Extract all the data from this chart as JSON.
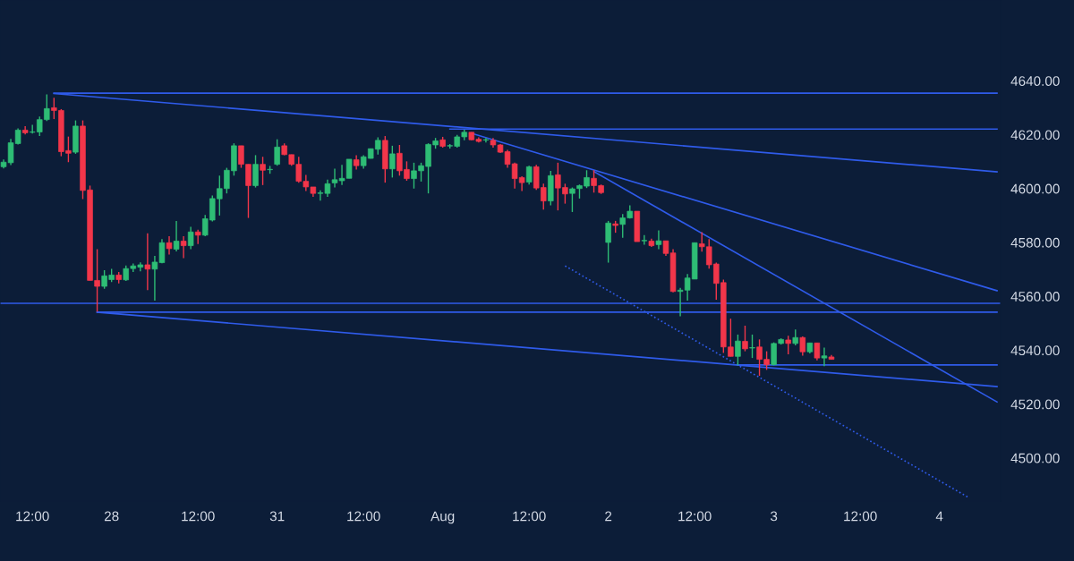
{
  "chart_data": {
    "type": "candlestick",
    "ylim": [
      4484,
      4670
    ],
    "categories": [
      null,
      null,
      null,
      null,
      "12:00",
      null,
      null,
      null,
      null,
      null,
      null,
      null,
      null,
      null,
      null,
      "28",
      null,
      null,
      null,
      null,
      null,
      null,
      null,
      null,
      null,
      null,
      null,
      "12:00",
      null,
      null,
      null,
      null,
      null,
      null,
      null,
      null,
      null,
      null,
      "31",
      null,
      null,
      null,
      null,
      null,
      null,
      null,
      null,
      null,
      null,
      null,
      "12:00",
      null,
      null,
      null,
      null,
      null,
      null,
      null,
      null,
      null,
      null,
      "Aug",
      null,
      null,
      null,
      null,
      null,
      null,
      null,
      null,
      null,
      null,
      null,
      "12:00",
      null,
      null,
      null,
      null,
      null,
      null,
      null,
      null,
      null,
      null,
      "2",
      null,
      null,
      null,
      null,
      null,
      null,
      null,
      null,
      null,
      null,
      null,
      "12:00",
      null,
      null,
      null,
      null,
      null,
      null,
      null,
      null,
      null,
      null,
      "3",
      null,
      null,
      null,
      null,
      null,
      null,
      null,
      null,
      null,
      null,
      null,
      "12:00",
      null,
      null,
      null,
      null,
      null,
      null,
      null,
      null,
      null,
      null,
      "4",
      null,
      null,
      null,
      null,
      null,
      null,
      null,
      null
    ],
    "yticks": [
      {
        "value": 4500,
        "label": "4500.00"
      },
      {
        "value": 4520,
        "label": "4520.00"
      },
      {
        "value": 4540,
        "label": "4540.00"
      },
      {
        "value": 4560,
        "label": "4560.00"
      },
      {
        "value": 4580,
        "label": "4580.00"
      },
      {
        "value": 4600,
        "label": "4600.00"
      },
      {
        "value": 4620,
        "label": "4620.00"
      },
      {
        "value": 4640,
        "label": "4640.00"
      }
    ],
    "grid": false,
    "legend": false,
    "ref_lines": [
      {
        "axis": "y",
        "value": 4557.4,
        "color": "#2f5bea"
      }
    ],
    "series": [
      {
        "ohlc": [
          [
            4608.1,
            4610.8,
            4607.5,
            4609.8
          ],
          [
            4609.6,
            4618.4,
            4608.7,
            4617.0
          ],
          [
            4616.7,
            4622.3,
            4616.4,
            4621.7
          ],
          [
            4621.7,
            4623.2,
            4620.1,
            4620.7
          ],
          [
            4620.9,
            4623.7,
            4620.4,
            4621.0
          ],
          [
            4621.0,
            4626.7,
            4619.5,
            4625.6
          ],
          [
            4625.6,
            4635.0,
            4625.1,
            4629.7
          ],
          [
            4630.0,
            4633.7,
            4625.8,
            4629.0
          ],
          [
            4629.0,
            4629.5,
            4612.0,
            4613.7
          ],
          [
            4614.1,
            4619.3,
            4609.8,
            4613.1
          ],
          [
            4613.5,
            4625.3,
            4612.9,
            4623.2
          ],
          [
            4623.2,
            4625.3,
            4596.1,
            4599.3
          ],
          [
            4599.5,
            4601.1,
            4565.9,
            4565.9
          ],
          [
            4565.9,
            4577.5,
            4554.3,
            4563.7
          ],
          [
            4563.7,
            4569.7,
            4562.8,
            4567.6
          ],
          [
            4566.2,
            4570.2,
            4565.3,
            4567.9
          ],
          [
            4567.9,
            4569.0,
            4564.8,
            4566.2
          ],
          [
            4566.1,
            4571.4,
            4565.7,
            4570.3
          ],
          [
            4570.3,
            4572.2,
            4569.0,
            4571.3
          ],
          [
            4570.8,
            4572.6,
            4569.3,
            4571.7
          ],
          [
            4571.7,
            4583.4,
            4562.3,
            4570.1
          ],
          [
            4570.1,
            4575.0,
            4558.4,
            4572.7
          ],
          [
            4572.5,
            4581.2,
            4572.3,
            4579.9
          ],
          [
            4579.9,
            4582.3,
            4575.5,
            4577.7
          ],
          [
            4577.5,
            4588.0,
            4576.7,
            4580.5
          ],
          [
            4580.5,
            4582.3,
            4574.2,
            4578.8
          ],
          [
            4578.8,
            4585.8,
            4577.5,
            4583.9
          ],
          [
            4583.9,
            4584.7,
            4579.4,
            4582.7
          ],
          [
            4582.7,
            4590.2,
            4582.3,
            4588.8
          ],
          [
            4588.3,
            4597.4,
            4587.8,
            4596.3
          ],
          [
            4596.2,
            4604.8,
            4590.0,
            4600.0
          ],
          [
            4600.0,
            4607.7,
            4598.2,
            4606.8
          ],
          [
            4606.6,
            4616.8,
            4604.8,
            4615.9
          ],
          [
            4615.9,
            4615.9,
            4607.7,
            4609.0
          ],
          [
            4609.0,
            4609.0,
            4589.1,
            4601.1
          ],
          [
            4601.1,
            4612.4,
            4600.4,
            4609.0
          ],
          [
            4609.0,
            4611.8,
            4601.3,
            4606.8
          ],
          [
            4607.0,
            4608.4,
            4605.5,
            4607.1
          ],
          [
            4609.0,
            4618.3,
            4608.5,
            4615.4
          ],
          [
            4615.9,
            4616.8,
            4612.4,
            4612.6
          ],
          [
            4612.6,
            4612.6,
            4608.5,
            4609.0
          ],
          [
            4609.0,
            4611.8,
            4602.2,
            4602.7
          ],
          [
            4602.7,
            4605.1,
            4599.1,
            4600.6
          ],
          [
            4600.6,
            4600.6,
            4596.9,
            4598.2
          ],
          [
            4598.2,
            4599.3,
            4595.5,
            4598.4
          ],
          [
            4598.2,
            4603.3,
            4596.9,
            4601.8
          ],
          [
            4602.1,
            4607.4,
            4600.4,
            4603.3
          ],
          [
            4602.9,
            4608.8,
            4601.3,
            4603.8
          ],
          [
            4603.8,
            4610.9,
            4603.8,
            4610.9
          ],
          [
            4610.7,
            4612.4,
            4607.1,
            4608.5
          ],
          [
            4608.5,
            4612.4,
            4607.4,
            4611.8
          ],
          [
            4611.2,
            4614.8,
            4611.1,
            4614.8
          ],
          [
            4614.6,
            4619.0,
            4612.6,
            4617.9
          ],
          [
            4617.9,
            4619.5,
            4602.2,
            4607.3
          ],
          [
            4607.3,
            4615.9,
            4604.1,
            4612.9
          ],
          [
            4613.1,
            4616.2,
            4604.8,
            4606.6
          ],
          [
            4607.1,
            4610.1,
            4602.9,
            4603.7
          ],
          [
            4603.7,
            4609.6,
            4600.0,
            4606.6
          ],
          [
            4606.6,
            4609.6,
            4602.6,
            4608.5
          ],
          [
            4608.2,
            4616.8,
            4598.2,
            4616.4
          ],
          [
            4616.2,
            4618.8,
            4614.8,
            4617.7
          ],
          [
            4618.1,
            4619.2,
            4615.2,
            4615.7
          ],
          [
            4615.8,
            4616.5,
            4614.9,
            4615.9
          ],
          [
            4615.7,
            4619.9,
            4615.2,
            4619.2
          ],
          [
            4619.2,
            4621.8,
            4617.9,
            4620.9
          ],
          [
            4620.9,
            4620.9,
            4617.9,
            4618.1
          ],
          [
            4618.3,
            4619.0,
            4617.1,
            4617.5
          ],
          [
            4618.0,
            4618.8,
            4617.1,
            4618.1
          ],
          [
            4617.9,
            4618.8,
            4615.2,
            4616.2
          ],
          [
            4616.2,
            4616.5,
            4613.2,
            4613.5
          ],
          [
            4613.7,
            4614.4,
            4607.7,
            4609.0
          ],
          [
            4609.2,
            4609.6,
            4600.0,
            4603.7
          ],
          [
            4604.1,
            4604.6,
            4599.1,
            4602.2
          ],
          [
            4602.4,
            4608.5,
            4601.5,
            4608.1
          ],
          [
            4608.1,
            4608.8,
            4599.5,
            4600.2
          ],
          [
            4600.4,
            4601.8,
            4592.2,
            4595.4
          ],
          [
            4595.4,
            4606.6,
            4593.8,
            4604.8
          ],
          [
            4605.1,
            4609.6,
            4591.9,
            4600.2
          ],
          [
            4600.4,
            4601.8,
            4594.4,
            4598.0
          ],
          [
            4598.2,
            4600.4,
            4591.3,
            4599.9
          ],
          [
            4600.0,
            4601.5,
            4596.3,
            4601.1
          ],
          [
            4600.9,
            4606.8,
            4600.2,
            4604.1
          ],
          [
            4603.8,
            4606.8,
            4598.5,
            4601.1
          ],
          [
            4601.1,
            4601.5,
            4598.0,
            4598.5
          ],
          [
            4580.0,
            4588.0,
            4572.5,
            4587.2
          ],
          [
            4586.9,
            4588.0,
            4583.6,
            4586.3
          ],
          [
            4586.7,
            4590.5,
            4581.7,
            4589.1
          ],
          [
            4589.1,
            4593.8,
            4588.9,
            4591.6
          ],
          [
            4591.6,
            4591.6,
            4580.3,
            4580.3
          ],
          [
            4580.6,
            4582.7,
            4579.2,
            4580.7
          ],
          [
            4580.5,
            4581.4,
            4578.3,
            4578.8
          ],
          [
            4579.2,
            4584.5,
            4577.5,
            4580.6
          ],
          [
            4580.6,
            4580.6,
            4575.0,
            4575.9
          ],
          [
            4576.1,
            4577.5,
            4561.5,
            4561.8
          ],
          [
            4561.8,
            4563.1,
            4552.6,
            4562.3
          ],
          [
            4562.3,
            4568.3,
            4558.4,
            4566.8
          ],
          [
            4566.4,
            4579.9,
            4566.4,
            4579.9
          ],
          [
            4579.5,
            4583.8,
            4576.6,
            4578.4
          ],
          [
            4578.4,
            4581.2,
            4570.3,
            4571.7
          ],
          [
            4572.0,
            4572.5,
            4558.7,
            4564.8
          ],
          [
            4565.1,
            4566.2,
            4539.0,
            4541.2
          ],
          [
            4541.2,
            4551.7,
            4537.7,
            4537.7
          ],
          [
            4537.7,
            4545.8,
            4534.4,
            4543.4
          ],
          [
            4543.3,
            4549.1,
            4539.6,
            4540.5
          ],
          [
            4540.8,
            4545.8,
            4537.1,
            4540.9
          ],
          [
            4541.2,
            4544.0,
            4530.5,
            4536.6
          ],
          [
            4536.6,
            4539.6,
            4532.7,
            4534.6
          ],
          [
            4534.6,
            4542.9,
            4534.4,
            4542.5
          ],
          [
            4542.5,
            4544.4,
            4542.1,
            4544.0
          ],
          [
            4543.8,
            4545.4,
            4538.5,
            4542.5
          ],
          [
            4542.5,
            4547.7,
            4541.8,
            4544.7
          ],
          [
            4544.7,
            4545.1,
            4538.0,
            4539.4
          ],
          [
            4539.4,
            4542.7,
            4538.8,
            4542.7
          ],
          [
            4542.7,
            4542.7,
            4536.2,
            4537.1
          ],
          [
            4537.1,
            4541.0,
            4534.1,
            4537.9
          ],
          [
            4537.5,
            4538.2,
            4536.6,
            4536.6
          ],
          null,
          null,
          null,
          null,
          null,
          null,
          null,
          null,
          null,
          null,
          null,
          null,
          null,
          null,
          null,
          null,
          null,
          null,
          null,
          null,
          null,
          null,
          null
        ],
        "colors": [
          "#2ebd75",
          "#2ebd75",
          "#2ebd75",
          "#f2364a",
          "#2ebd75",
          "#2ebd75",
          "#2ebd75",
          "#f2364a",
          "#f2364a",
          "#f2364a",
          "#2ebd75",
          "#f2364a",
          "#f2364a",
          "#f2364a",
          "#2ebd75",
          "#2ebd75",
          "#f2364a",
          "#2ebd75",
          "#2ebd75",
          "#2ebd75",
          "#f2364a",
          "#2ebd75",
          "#2ebd75",
          "#f2364a",
          "#2ebd75",
          "#f2364a",
          "#2ebd75",
          "#f2364a",
          "#2ebd75",
          "#2ebd75",
          "#2ebd75",
          "#2ebd75",
          "#2ebd75",
          "#f2364a",
          "#f2364a",
          "#2ebd75",
          "#f2364a",
          "#2ebd75",
          "#2ebd75",
          "#f2364a",
          "#f2364a",
          "#f2364a",
          "#f2364a",
          "#f2364a",
          "#2ebd75",
          "#2ebd75",
          "#2ebd75",
          "#2ebd75",
          "#2ebd75",
          "#f2364a",
          "#2ebd75",
          "#2ebd75",
          "#2ebd75",
          "#f2364a",
          "#2ebd75",
          "#f2364a",
          "#f2364a",
          "#2ebd75",
          "#2ebd75",
          "#2ebd75",
          "#2ebd75",
          "#f2364a",
          "#2ebd75",
          "#2ebd75",
          "#2ebd75",
          "#f2364a",
          "#f2364a",
          "#2ebd75",
          "#f2364a",
          "#f2364a",
          "#f2364a",
          "#f2364a",
          "#f2364a",
          "#2ebd75",
          "#f2364a",
          "#f2364a",
          "#2ebd75",
          "#f2364a",
          "#f2364a",
          "#2ebd75",
          "#2ebd75",
          "#2ebd75",
          "#f2364a",
          "#f2364a",
          "#2ebd75",
          "#f2364a",
          "#2ebd75",
          "#2ebd75",
          "#f2364a",
          "#2ebd75",
          "#f2364a",
          "#2ebd75",
          "#f2364a",
          "#f2364a",
          "#2ebd75",
          "#2ebd75",
          "#2ebd75",
          "#f2364a",
          "#f2364a",
          "#f2364a",
          "#f2364a",
          "#f2364a",
          "#2ebd75",
          "#f2364a",
          "#2ebd75",
          "#f2364a",
          "#f2364a",
          "#2ebd75",
          "#2ebd75",
          "#f2364a",
          "#2ebd75",
          "#f2364a",
          "#2ebd75",
          "#f2364a",
          "#2ebd75",
          "#f2364a",
          null,
          null,
          null,
          null,
          null,
          null,
          null,
          null,
          null,
          null,
          null,
          null,
          null,
          null,
          null,
          null,
          null,
          null,
          null,
          null,
          null,
          null,
          null
        ]
      },
      {
        "type": "line",
        "color": "#2f5bea",
        "values": [
          null,
          null,
          null,
          null,
          null,
          null,
          null,
          4635.4,
          null,
          null,
          null,
          null,
          null,
          null,
          null,
          null,
          null,
          null,
          null,
          null,
          null,
          null,
          null,
          null,
          null,
          null,
          null,
          null,
          null,
          null,
          null,
          null,
          null,
          null,
          null,
          null,
          null,
          null,
          null,
          null,
          null,
          null,
          null,
          null,
          null,
          null,
          null,
          null,
          null,
          null,
          null,
          null,
          null,
          null,
          null,
          null,
          null,
          null,
          null,
          null,
          null,
          null,
          null,
          null,
          null,
          null,
          null,
          null,
          null,
          null,
          null,
          null,
          null,
          null,
          null,
          null,
          null,
          null,
          null,
          null,
          null,
          null,
          null,
          null,
          null,
          null,
          null,
          null,
          null,
          null,
          null,
          null,
          null,
          null,
          null,
          null,
          null,
          null,
          null,
          null,
          null,
          null,
          null,
          null,
          null,
          null,
          null,
          null,
          null,
          null,
          null,
          null,
          null,
          null,
          null,
          null,
          null,
          null,
          null,
          null,
          null,
          null,
          null,
          null,
          null,
          null,
          null,
          null,
          null,
          null,
          null,
          null,
          null,
          null,
          null,
          null,
          null,
          null,
          4635.4
        ]
      },
      {
        "type": "line",
        "color": "#2f5bea",
        "values": [
          null,
          null,
          null,
          null,
          null,
          null,
          null,
          4635.3,
          null,
          null,
          null,
          null,
          null,
          null,
          null,
          null,
          null,
          null,
          null,
          null,
          null,
          null,
          null,
          null,
          null,
          null,
          null,
          null,
          null,
          null,
          null,
          null,
          null,
          null,
          null,
          null,
          null,
          null,
          null,
          null,
          null,
          null,
          null,
          null,
          null,
          null,
          null,
          null,
          null,
          null,
          null,
          null,
          null,
          null,
          null,
          null,
          null,
          null,
          null,
          null,
          null,
          null,
          null,
          null,
          null,
          null,
          null,
          null,
          null,
          null,
          null,
          null,
          null,
          null,
          null,
          null,
          null,
          null,
          null,
          null,
          null,
          null,
          null,
          null,
          null,
          null,
          null,
          null,
          null,
          null,
          null,
          null,
          null,
          null,
          null,
          null,
          null,
          null,
          null,
          null,
          null,
          null,
          null,
          null,
          null,
          null,
          null,
          null,
          null,
          null,
          null,
          null,
          null,
          null,
          null,
          null,
          null,
          null,
          null,
          null,
          null,
          null,
          null,
          null,
          null,
          null,
          null,
          null,
          null,
          null,
          null,
          null,
          null,
          null,
          null,
          null,
          null,
          null,
          4606.2
        ]
      },
      {
        "type": "line",
        "color": "#2f5bea",
        "values": [
          null,
          null,
          null,
          null,
          null,
          null,
          null,
          null,
          null,
          null,
          null,
          null,
          null,
          null,
          null,
          null,
          null,
          null,
          null,
          null,
          null,
          null,
          null,
          null,
          null,
          null,
          null,
          null,
          null,
          null,
          null,
          null,
          null,
          null,
          null,
          null,
          null,
          null,
          null,
          null,
          null,
          null,
          null,
          null,
          null,
          null,
          null,
          null,
          null,
          null,
          null,
          null,
          null,
          null,
          null,
          null,
          null,
          null,
          null,
          null,
          null,
          null,
          4622.1,
          null,
          null,
          null,
          null,
          null,
          null,
          null,
          null,
          null,
          null,
          null,
          null,
          null,
          null,
          null,
          null,
          null,
          null,
          null,
          null,
          null,
          null,
          null,
          null,
          null,
          null,
          null,
          null,
          null,
          null,
          null,
          null,
          null,
          null,
          null,
          null,
          null,
          null,
          null,
          null,
          null,
          null,
          null,
          null,
          null,
          null,
          null,
          null,
          null,
          null,
          null,
          null,
          null,
          null,
          null,
          null,
          null,
          null,
          null,
          null,
          null,
          null,
          null,
          null,
          null,
          null,
          null,
          null,
          null,
          null,
          null,
          null,
          null,
          null,
          null,
          4622.1
        ]
      },
      {
        "type": "line",
        "color": "#2f5bea",
        "values": [
          null,
          null,
          null,
          null,
          null,
          null,
          null,
          null,
          null,
          null,
          null,
          null,
          null,
          null,
          null,
          null,
          null,
          null,
          null,
          null,
          null,
          null,
          null,
          null,
          null,
          null,
          null,
          null,
          null,
          null,
          null,
          null,
          null,
          null,
          null,
          null,
          null,
          null,
          null,
          null,
          null,
          null,
          null,
          null,
          null,
          null,
          null,
          null,
          null,
          null,
          null,
          null,
          null,
          null,
          null,
          null,
          null,
          null,
          null,
          null,
          null,
          null,
          null,
          null,
          null,
          4620.5,
          null,
          null,
          null,
          null,
          null,
          null,
          null,
          null,
          null,
          null,
          null,
          null,
          null,
          null,
          null,
          null,
          null,
          null,
          null,
          null,
          null,
          null,
          null,
          null,
          null,
          null,
          null,
          null,
          null,
          null,
          null,
          null,
          null,
          null,
          null,
          null,
          null,
          null,
          null,
          null,
          null,
          null,
          null,
          null,
          null,
          null,
          null,
          null,
          null,
          null,
          null,
          null,
          null,
          null,
          null,
          null,
          null,
          null,
          null,
          null,
          null,
          null,
          null,
          null,
          null,
          null,
          null,
          null,
          null,
          null,
          null,
          null,
          4562.1
        ]
      },
      {
        "type": "line",
        "color": "#2f5bea",
        "values": [
          null,
          null,
          null,
          null,
          null,
          null,
          null,
          null,
          null,
          null,
          null,
          null,
          null,
          null,
          null,
          null,
          null,
          null,
          null,
          null,
          null,
          null,
          null,
          null,
          null,
          null,
          null,
          null,
          null,
          null,
          null,
          null,
          null,
          null,
          null,
          null,
          null,
          null,
          null,
          null,
          null,
          null,
          null,
          null,
          null,
          null,
          null,
          null,
          null,
          null,
          null,
          null,
          null,
          null,
          null,
          null,
          null,
          null,
          null,
          null,
          null,
          null,
          null,
          null,
          null,
          null,
          null,
          null,
          null,
          null,
          null,
          null,
          null,
          null,
          null,
          null,
          null,
          null,
          null,
          null,
          null,
          null,
          4606.3,
          null,
          null,
          null,
          null,
          null,
          null,
          null,
          null,
          null,
          null,
          null,
          null,
          null,
          null,
          null,
          null,
          null,
          null,
          null,
          null,
          null,
          null,
          null,
          null,
          null,
          null,
          null,
          null,
          null,
          null,
          null,
          null,
          null,
          null,
          null,
          null,
          null,
          null,
          null,
          null,
          null,
          null,
          null,
          null,
          null,
          null,
          null,
          null,
          null,
          null,
          null,
          null,
          null,
          null,
          null,
          4520.8
        ]
      },
      {
        "type": "line",
        "color": "#2f5bea",
        "values": [
          null,
          null,
          null,
          null,
          null,
          null,
          null,
          null,
          null,
          null,
          null,
          null,
          null,
          4554.1,
          null,
          null,
          null,
          null,
          null,
          null,
          null,
          null,
          null,
          null,
          null,
          null,
          null,
          null,
          null,
          null,
          null,
          null,
          null,
          null,
          null,
          null,
          null,
          null,
          null,
          null,
          null,
          null,
          null,
          null,
          null,
          null,
          null,
          null,
          null,
          null,
          null,
          null,
          null,
          null,
          null,
          null,
          null,
          null,
          null,
          null,
          null,
          null,
          null,
          null,
          null,
          null,
          null,
          null,
          null,
          null,
          null,
          null,
          null,
          null,
          null,
          null,
          null,
          null,
          null,
          null,
          null,
          null,
          null,
          null,
          null,
          null,
          null,
          null,
          null,
          null,
          null,
          null,
          null,
          null,
          null,
          null,
          null,
          null,
          null,
          null,
          null,
          null,
          null,
          null,
          null,
          null,
          null,
          null,
          null,
          null,
          null,
          null,
          null,
          null,
          null,
          null,
          null,
          null,
          null,
          null,
          null,
          null,
          null,
          null,
          null,
          null,
          null,
          null,
          null,
          null,
          null,
          null,
          null,
          null,
          null,
          null,
          null,
          null,
          4554.1
        ]
      },
      {
        "type": "line",
        "color": "#2f5bea",
        "values": [
          null,
          null,
          null,
          null,
          null,
          null,
          null,
          null,
          null,
          null,
          null,
          null,
          null,
          4554.1,
          null,
          null,
          null,
          null,
          null,
          null,
          null,
          null,
          null,
          null,
          null,
          null,
          null,
          null,
          null,
          null,
          null,
          null,
          null,
          null,
          null,
          null,
          null,
          null,
          null,
          null,
          null,
          null,
          null,
          null,
          null,
          null,
          null,
          null,
          null,
          null,
          null,
          null,
          null,
          null,
          null,
          null,
          null,
          null,
          null,
          null,
          null,
          null,
          null,
          null,
          null,
          null,
          null,
          null,
          null,
          null,
          null,
          null,
          null,
          null,
          null,
          null,
          null,
          null,
          null,
          null,
          null,
          null,
          null,
          null,
          null,
          null,
          null,
          null,
          null,
          null,
          null,
          null,
          null,
          null,
          null,
          null,
          null,
          null,
          null,
          null,
          null,
          null,
          null,
          null,
          null,
          null,
          null,
          null,
          null,
          null,
          null,
          null,
          null,
          null,
          null,
          null,
          null,
          null,
          null,
          null,
          null,
          null,
          null,
          null,
          null,
          null,
          null,
          null,
          null,
          null,
          null,
          null,
          null,
          null,
          null,
          null,
          null,
          null,
          4526.5
        ]
      },
      {
        "type": "line",
        "color": "#2f5bea",
        "values": [
          null,
          null,
          null,
          null,
          null,
          null,
          null,
          null,
          null,
          null,
          null,
          null,
          null,
          null,
          null,
          null,
          null,
          null,
          null,
          null,
          null,
          null,
          null,
          null,
          null,
          null,
          null,
          null,
          null,
          null,
          null,
          null,
          null,
          null,
          null,
          null,
          null,
          null,
          null,
          null,
          null,
          null,
          null,
          null,
          null,
          null,
          null,
          null,
          null,
          null,
          null,
          null,
          null,
          null,
          null,
          null,
          null,
          null,
          null,
          null,
          null,
          null,
          null,
          null,
          null,
          null,
          null,
          null,
          null,
          null,
          null,
          null,
          null,
          null,
          null,
          null,
          null,
          null,
          null,
          null,
          null,
          null,
          null,
          null,
          null,
          null,
          null,
          null,
          null,
          null,
          null,
          null,
          null,
          null,
          null,
          null,
          null,
          null,
          null,
          null,
          null,
          null,
          4534.5,
          null,
          null,
          null,
          null,
          null,
          null,
          null,
          null,
          null,
          null,
          null,
          null,
          null,
          null,
          null,
          null,
          null,
          null,
          null,
          null,
          null,
          null,
          null,
          null,
          null,
          null,
          null,
          null,
          null,
          null,
          null,
          null,
          null,
          null,
          null,
          4534.5
        ]
      },
      {
        "type": "line",
        "color": "#2f5bea",
        "line_style": "dotted",
        "values": [
          null,
          null,
          null,
          null,
          null,
          null,
          null,
          null,
          null,
          null,
          null,
          null,
          null,
          null,
          null,
          null,
          null,
          null,
          null,
          null,
          null,
          null,
          null,
          null,
          null,
          null,
          null,
          null,
          null,
          null,
          null,
          null,
          null,
          null,
          null,
          null,
          null,
          null,
          null,
          null,
          null,
          null,
          null,
          null,
          null,
          null,
          null,
          null,
          null,
          null,
          null,
          null,
          null,
          null,
          null,
          null,
          null,
          null,
          null,
          null,
          null,
          null,
          null,
          null,
          null,
          null,
          null,
          null,
          null,
          null,
          null,
          null,
          null,
          null,
          null,
          null,
          null,
          null,
          4571.3,
          null,
          null,
          null,
          null,
          null,
          null,
          null,
          null,
          null,
          null,
          null,
          null,
          null,
          null,
          null,
          null,
          null,
          null,
          null,
          null,
          null,
          null,
          null,
          null,
          null,
          null,
          null,
          null,
          null,
          null,
          null,
          null,
          null,
          null,
          null,
          null,
          null,
          null,
          null,
          null,
          null,
          null,
          null,
          null,
          null,
          null,
          null,
          null,
          null,
          null,
          null,
          null,
          null,
          null,
          null,
          4485.4,
          null,
          null,
          null,
          null
        ]
      }
    ]
  }
}
